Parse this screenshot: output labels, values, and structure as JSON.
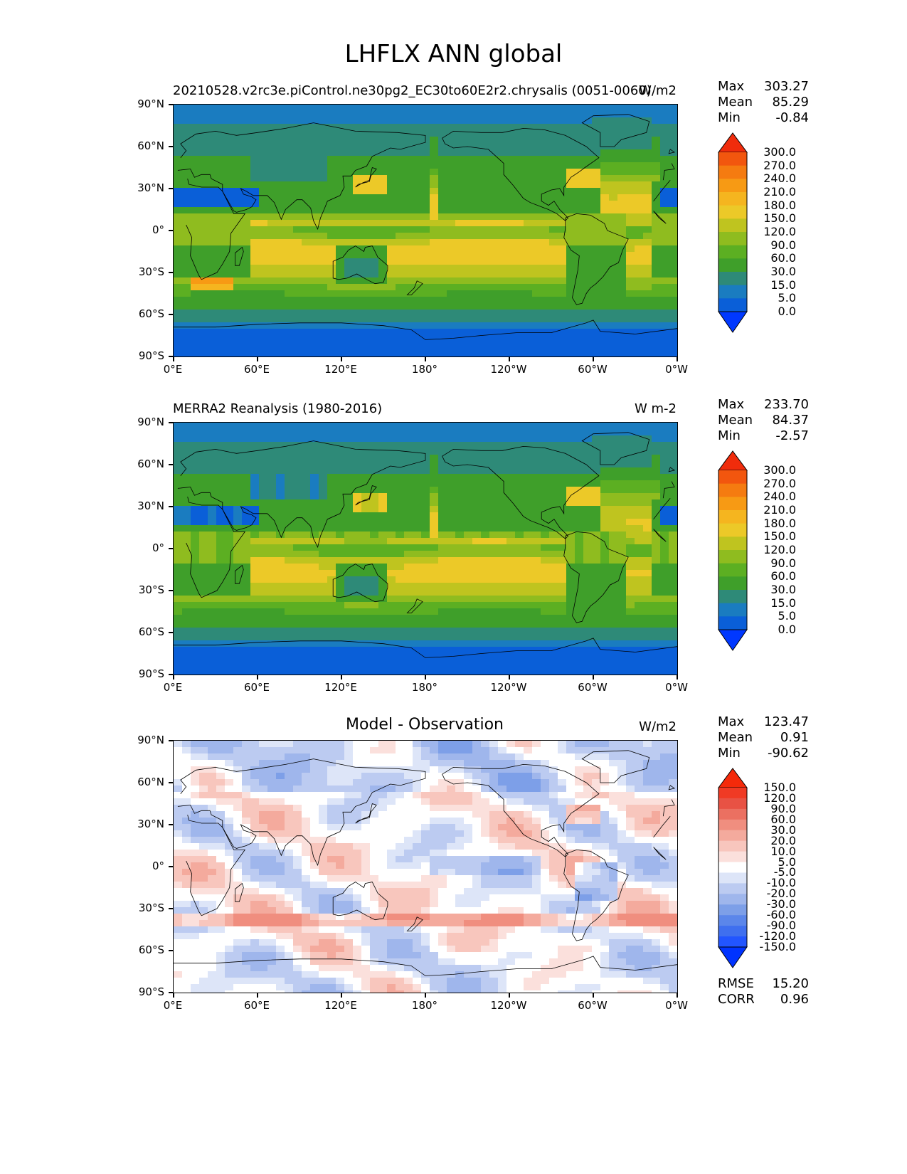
{
  "figure": {
    "title": "LHFLX ANN global"
  },
  "axes": {
    "y_ticks": [
      "90°N",
      "60°N",
      "30°N",
      "0°",
      "30°S",
      "60°S",
      "90°S"
    ],
    "x_ticks": [
      "0°E",
      "60°E",
      "120°E",
      "180°",
      "120°W",
      "60°W",
      "0°W"
    ]
  },
  "panels": [
    {
      "id": "test",
      "title": "20210528.v2rc3e.piControl.ne30pg2_EC30to60E2r2.chrysalis (0051-0060)",
      "units": "W/m2",
      "stats": [
        {
          "label": "Max",
          "value": "303.27"
        },
        {
          "label": "Mean",
          "value": "85.29"
        },
        {
          "label": "Min",
          "value": "-0.84"
        }
      ],
      "colorbar_labels": [
        "300.0",
        "270.0",
        "240.0",
        "210.0",
        "180.0",
        "150.0",
        "120.0",
        "90.0",
        "60.0",
        "30.0",
        "15.0",
        "5.0",
        "0.0"
      ]
    },
    {
      "id": "ref",
      "title": "MERRA2 Reanalysis (1980-2016)",
      "units": "W m-2",
      "stats": [
        {
          "label": "Max",
          "value": "233.70"
        },
        {
          "label": "Mean",
          "value": "84.37"
        },
        {
          "label": "Min",
          "value": "-2.57"
        }
      ],
      "colorbar_labels": [
        "300.0",
        "270.0",
        "240.0",
        "210.0",
        "180.0",
        "150.0",
        "120.0",
        "90.0",
        "60.0",
        "30.0",
        "15.0",
        "5.0",
        "0.0"
      ]
    },
    {
      "id": "diff",
      "title": "Model - Observation",
      "units": "W/m2",
      "stats": [
        {
          "label": "Max",
          "value": "123.47"
        },
        {
          "label": "Mean",
          "value": "0.91"
        },
        {
          "label": "Min",
          "value": "-90.62"
        }
      ],
      "extra_stats": [
        {
          "label": "RMSE",
          "value": "15.20"
        },
        {
          "label": "CORR",
          "value": "0.96"
        }
      ],
      "colorbar_labels": [
        "150.0",
        "120.0",
        "90.0",
        "60.0",
        "30.0",
        "20.0",
        "10.0",
        "5.0",
        "-5.0",
        "-10.0",
        "-20.0",
        "-30.0",
        "-60.0",
        "-90.0",
        "-120.0",
        "-150.0"
      ]
    }
  ],
  "chart_data": [
    {
      "type": "heatmap",
      "title": "20210528.v2rc3e.piControl.ne30pg2_EC30to60E2r2.chrysalis (0051-0060)",
      "units": "W/m2",
      "xlim": [
        0,
        360
      ],
      "ylim": [
        -90,
        90
      ],
      "levels": [
        0,
        5,
        15,
        30,
        60,
        90,
        120,
        150,
        180,
        210,
        240,
        270,
        300
      ],
      "colors": [
        "#0038ff",
        "#0a5fd8",
        "#1a7cc0",
        "#2e8a78",
        "#3f9f2a",
        "#5caf22",
        "#8fbc1f",
        "#bfc41f",
        "#ecc928",
        "#f5b51f",
        "#f79a14",
        "#f57b10",
        "#f2560e",
        "#f02c0c"
      ],
      "max": 303.27,
      "mean": 85.29,
      "min": -0.84
    },
    {
      "type": "heatmap",
      "title": "MERRA2 Reanalysis (1980-2016)",
      "units": "W m-2",
      "xlim": [
        0,
        360
      ],
      "ylim": [
        -90,
        90
      ],
      "levels": [
        0,
        5,
        15,
        30,
        60,
        90,
        120,
        150,
        180,
        210,
        240,
        270,
        300
      ],
      "colors": [
        "#0038ff",
        "#0a5fd8",
        "#1a7cc0",
        "#2e8a78",
        "#3f9f2a",
        "#5caf22",
        "#8fbc1f",
        "#bfc41f",
        "#ecc928",
        "#f5b51f",
        "#f79a14",
        "#f57b10",
        "#f2560e",
        "#f02c0c"
      ],
      "max": 233.7,
      "mean": 84.37,
      "min": -2.57
    },
    {
      "type": "heatmap",
      "title": "Model - Observation",
      "units": "W/m2",
      "xlim": [
        0,
        360
      ],
      "ylim": [
        -90,
        90
      ],
      "levels": [
        -150,
        -120,
        -90,
        -60,
        -30,
        -20,
        -10,
        -5,
        5,
        10,
        20,
        30,
        60,
        90,
        120,
        150
      ],
      "colors": [
        "#0033ff",
        "#2255ff",
        "#3f6fef",
        "#5b86ea",
        "#7d9fe8",
        "#9fb6ec",
        "#bccbf1",
        "#dde5f8",
        "#ffffff",
        "#fbe0dc",
        "#f8c6bd",
        "#f4aa9d",
        "#f08e7f",
        "#eb7061",
        "#e85244",
        "#f03a24",
        "#f52a0a"
      ],
      "max": 123.47,
      "mean": 0.91,
      "min": -90.62,
      "rmse": 15.2,
      "corr": 0.96
    }
  ]
}
